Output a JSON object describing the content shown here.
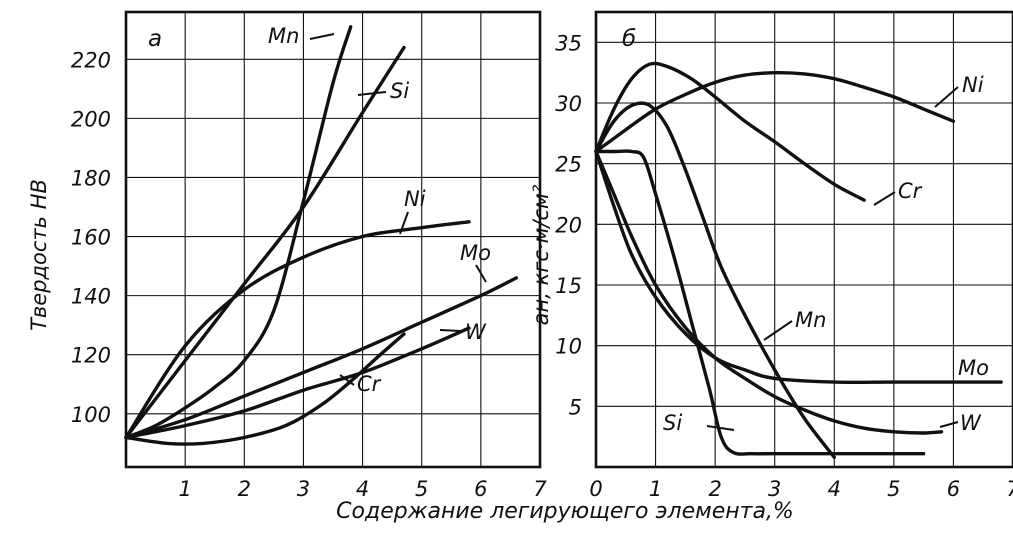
{
  "figure": {
    "xlabel": "Содержание легирующего элемента,%"
  },
  "chart_data": [
    {
      "type": "line",
      "panel_label": "а",
      "ylabel": "Твердость НВ",
      "xlim": [
        0,
        7
      ],
      "ylim": [
        82,
        236
      ],
      "x_ticks": [
        "1",
        "2",
        "3",
        "4",
        "5",
        "6",
        "7"
      ],
      "y_ticks": [
        "100",
        "120",
        "140",
        "160",
        "180",
        "200",
        "220"
      ],
      "grid": true,
      "series": [
        {
          "name": "Mn",
          "x": [
            0,
            0.5,
            1.0,
            1.5,
            2.0,
            2.5,
            3.0,
            3.5,
            3.8
          ],
          "y": [
            92,
            96,
            102,
            109,
            118,
            135,
            172,
            212,
            231
          ]
        },
        {
          "name": "Si",
          "x": [
            0,
            1,
            2,
            3,
            4,
            4.7
          ],
          "y": [
            92,
            118,
            144,
            170,
            202,
            224
          ]
        },
        {
          "name": "Ni",
          "x": [
            0,
            1,
            2,
            3,
            4,
            5,
            5.8
          ],
          "y": [
            92,
            123,
            142,
            153,
            160,
            163,
            165
          ]
        },
        {
          "name": "Mo",
          "x": [
            0,
            1,
            2,
            3,
            4,
            5,
            6,
            6.6
          ],
          "y": [
            92,
            98,
            106,
            114,
            122,
            131,
            140,
            146
          ]
        },
        {
          "name": "W",
          "x": [
            0,
            1,
            2,
            3,
            4,
            5,
            5.8
          ],
          "y": [
            92,
            96,
            101,
            108,
            114,
            122,
            129
          ]
        },
        {
          "name": "Cr",
          "x": [
            0,
            0.7,
            1.3,
            2.0,
            2.7,
            3.3,
            3.8,
            4.3,
            4.7
          ],
          "y": [
            92,
            90,
            90,
            92,
            96,
            103,
            111,
            120,
            127
          ]
        }
      ]
    },
    {
      "type": "line",
      "panel_label": "б",
      "ylabel": "aн, кгс·м/см²",
      "xlim": [
        0,
        7
      ],
      "ylim": [
        0,
        37.5
      ],
      "x_ticks": [
        "0",
        "1",
        "2",
        "3",
        "4",
        "5",
        "6",
        "7"
      ],
      "y_ticks": [
        "5",
        "10",
        "15",
        "20",
        "25",
        "30",
        "35"
      ],
      "grid": true,
      "series": [
        {
          "name": "Ni",
          "x": [
            0,
            0.5,
            1.0,
            1.5,
            2.0,
            2.5,
            3.0,
            3.5,
            4.0,
            4.5,
            5.0,
            5.5,
            6.0
          ],
          "y": [
            26,
            27.8,
            29.5,
            30.7,
            31.7,
            32.3,
            32.5,
            32.4,
            32.0,
            31.3,
            30.5,
            29.5,
            28.5
          ]
        },
        {
          "name": "Cr",
          "x": [
            0,
            0.3,
            0.6,
            0.9,
            1.2,
            1.6,
            2.0,
            2.5,
            3.0,
            3.5,
            4.0,
            4.5
          ],
          "y": [
            26,
            29.5,
            32,
            33.2,
            33.0,
            32.0,
            30.5,
            28.5,
            26.8,
            25.0,
            23.3,
            22.0
          ]
        },
        {
          "name": "Mn",
          "x": [
            0,
            0.3,
            0.6,
            0.9,
            1.2,
            1.5,
            1.8,
            2.1,
            2.5,
            3.0,
            3.5,
            4.0
          ],
          "y": [
            26,
            28.5,
            29.8,
            29.8,
            28.0,
            24.5,
            20.5,
            16.5,
            12.5,
            8.0,
            4.0,
            0.8
          ]
        },
        {
          "name": "Si",
          "x": [
            0,
            0.3,
            0.6,
            0.8,
            1.0,
            1.3,
            1.6,
            1.9,
            2.1,
            2.3,
            2.6,
            3.0,
            4.0,
            5.0,
            5.5
          ],
          "y": [
            26,
            26,
            26,
            25.5,
            22.5,
            17.5,
            12.0,
            6.5,
            2.5,
            1.2,
            1.1,
            1.1,
            1.1,
            1.1,
            1.1
          ]
        },
        {
          "name": "Mo",
          "x": [
            0,
            0.3,
            0.6,
            1.0,
            1.5,
            2.0,
            2.5,
            3.0,
            4.0,
            5.0,
            6.0,
            6.8
          ],
          "y": [
            26,
            21.5,
            17.5,
            14.0,
            11.0,
            9.0,
            8.0,
            7.3,
            7.0,
            7.0,
            7.0,
            7.0
          ]
        },
        {
          "name": "W",
          "x": [
            0,
            0.3,
            0.6,
            1.0,
            1.5,
            2.0,
            2.5,
            3.0,
            3.5,
            4.0,
            4.5,
            5.0,
            5.5,
            5.8
          ],
          "y": [
            26,
            22.5,
            19.0,
            15.0,
            11.5,
            9.0,
            7.3,
            5.8,
            4.7,
            3.8,
            3.2,
            2.9,
            2.8,
            2.9
          ]
        }
      ]
    }
  ]
}
